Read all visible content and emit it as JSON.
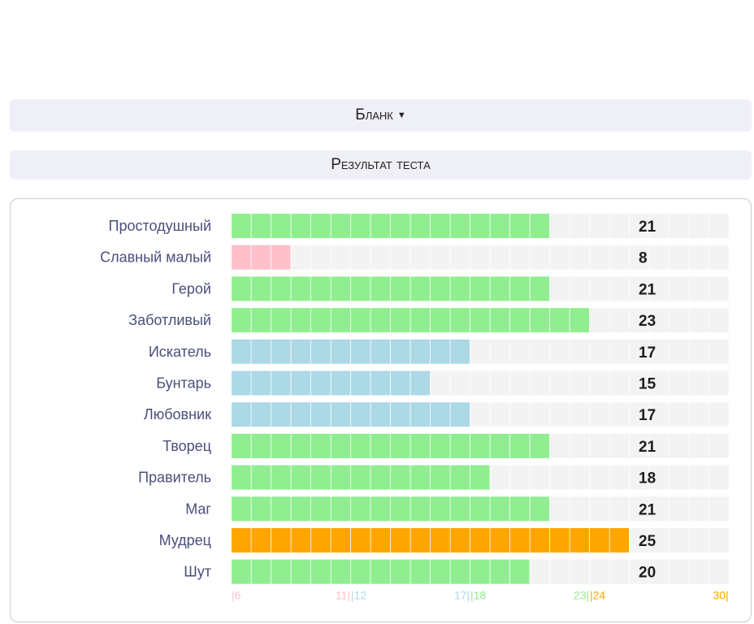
{
  "controls": {
    "blank_label": "Бланк",
    "result_label": "Результат теста"
  },
  "colors": {
    "low": "#ffc0cb",
    "mid": "#add8e6",
    "high": "#90ee90",
    "top": "#ffa500",
    "track": "#f3f3f3",
    "label": "#4a4f7a"
  },
  "chart_data": {
    "type": "bar",
    "orientation": "horizontal",
    "categories": [
      "Простодушный",
      "Славный малый",
      "Герой",
      "Заботливый",
      "Искатель",
      "Бунтарь",
      "Любовник",
      "Творец",
      "Правитель",
      "Маг",
      "Мудрец",
      "Шут"
    ],
    "values": [
      21,
      8,
      21,
      23,
      17,
      15,
      17,
      21,
      18,
      21,
      25,
      20
    ],
    "xlim": [
      6,
      30
    ],
    "bands": [
      {
        "from": 6,
        "to": 11,
        "color": "#ffc0cb",
        "start_label": "|6",
        "end_label": "11|"
      },
      {
        "from": 12,
        "to": 17,
        "color": "#add8e6",
        "start_label": "|12",
        "end_label": "17|"
      },
      {
        "from": 18,
        "to": 23,
        "color": "#90ee90",
        "start_label": "|18",
        "end_label": "23|"
      },
      {
        "from": 24,
        "to": 30,
        "color": "#ffa500",
        "start_label": "|24",
        "end_label": "30|"
      }
    ]
  }
}
